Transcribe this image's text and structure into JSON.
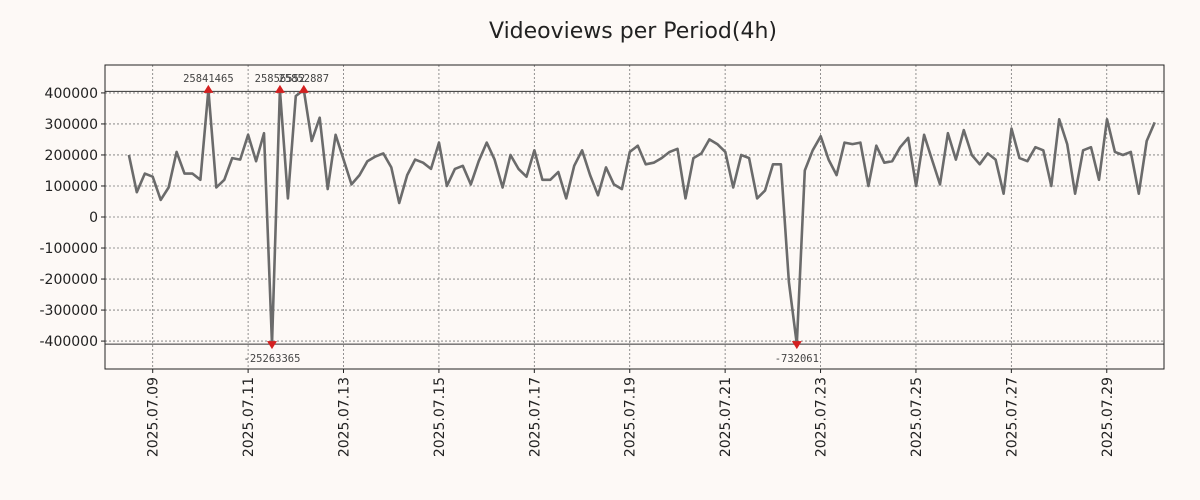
{
  "chart_data": {
    "type": "line",
    "title": "Videoviews per Period(4h)",
    "xlabel": "",
    "ylabel": "",
    "ylim": [
      -490000,
      490000
    ],
    "yticks": [
      400000,
      300000,
      200000,
      100000,
      0,
      -100000,
      -200000,
      -300000,
      -400000
    ],
    "ytick_labels": [
      "400000",
      "300000",
      "200000",
      "100000",
      "0",
      "-100000",
      "-200000",
      "-300000",
      "-400000"
    ],
    "x_start": "2025.07.08",
    "x_period_days": 0.1667,
    "xlim_days": [
      0,
      22.2
    ],
    "xticks_days": [
      1,
      3,
      5,
      7,
      9,
      11,
      13,
      15,
      17,
      19,
      21
    ],
    "xtick_labels": [
      "2025.07.09",
      "2025.07.11",
      "2025.07.13",
      "2025.07.15",
      "2025.07.17",
      "2025.07.19",
      "2025.07.21",
      "2025.07.23",
      "2025.07.25",
      "2025.07.27",
      "2025.07.29"
    ],
    "clip_lines": [
      405000,
      -410000
    ],
    "series": [
      {
        "name": "Videoviews",
        "color": "#6b6b6b",
        "start_day": 0.5,
        "values": [
          200000,
          80000,
          140000,
          130000,
          55000,
          95000,
          210000,
          140000,
          140000,
          120000,
          410000,
          95000,
          120000,
          190000,
          185000,
          265000,
          180000,
          270000,
          -410000,
          410000,
          60000,
          390000,
          410000,
          245000,
          320000,
          90000,
          265000,
          185000,
          105000,
          135000,
          180000,
          195000,
          205000,
          160000,
          45000,
          135000,
          185000,
          175000,
          155000,
          240000,
          100000,
          155000,
          165000,
          105000,
          180000,
          240000,
          185000,
          95000,
          200000,
          155000,
          130000,
          215000,
          120000,
          120000,
          145000,
          60000,
          165000,
          215000,
          135000,
          70000,
          160000,
          105000,
          90000,
          210000,
          230000,
          170000,
          175000,
          190000,
          210000,
          220000,
          60000,
          190000,
          205000,
          250000,
          235000,
          210000,
          95000,
          200000,
          190000,
          60000,
          85000,
          170000,
          170000,
          -210000,
          -410000,
          150000,
          215000,
          260000,
          185000,
          135000,
          240000,
          235000,
          240000,
          100000,
          230000,
          175000,
          180000,
          225000,
          255000,
          100000,
          265000,
          185000,
          105000,
          270000,
          185000,
          280000,
          200000,
          170000,
          205000,
          185000,
          75000,
          285000,
          190000,
          180000,
          225000,
          215000,
          100000,
          315000,
          235000,
          75000,
          215000,
          225000,
          120000,
          315000,
          210000,
          200000,
          210000,
          75000,
          245000,
          305000
        ]
      }
    ],
    "annotations": [
      {
        "text": "25841465",
        "index": 10,
        "position": "top",
        "marker": "up"
      },
      {
        "text": "25856552",
        "index": 19,
        "position": "top",
        "marker": "up"
      },
      {
        "text": "25852887",
        "index": 22,
        "position": "top",
        "marker": "up"
      },
      {
        "text": "-25263365",
        "index": 18,
        "position": "bottom",
        "marker": "down"
      },
      {
        "text": "-732061",
        "index": 84,
        "position": "bottom",
        "marker": "down"
      }
    ],
    "marker_color": "#d42020",
    "grid": true
  }
}
